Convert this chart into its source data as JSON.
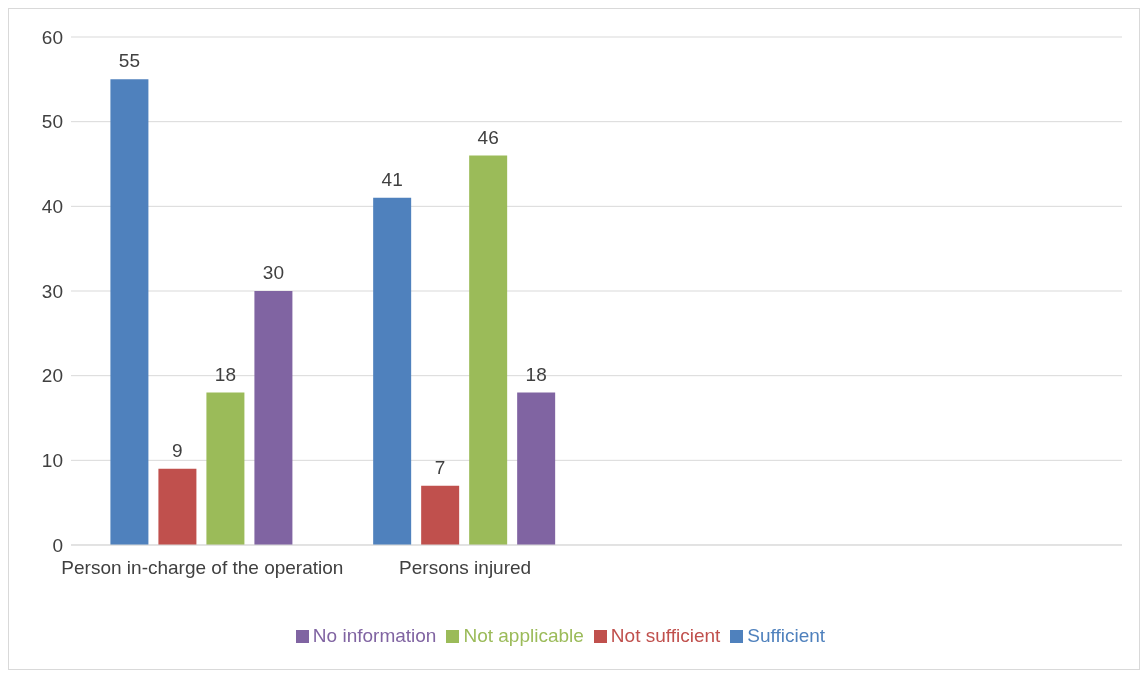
{
  "chart_data": {
    "type": "bar",
    "categories": [
      "Person in-charge of the operation",
      "Persons injured",
      null,
      null
    ],
    "series": [
      {
        "name": "Sufficient",
        "color": "#4f81bd",
        "values": [
          55,
          41,
          null,
          null
        ]
      },
      {
        "name": "Not sufficient",
        "color": "#c0504d",
        "values": [
          9,
          7,
          null,
          null
        ]
      },
      {
        "name": "Not applicable",
        "color": "#9bbb59",
        "values": [
          18,
          46,
          null,
          null
        ]
      },
      {
        "name": "No information",
        "color": "#8064a2",
        "values": [
          30,
          18,
          null,
          null
        ]
      }
    ],
    "ylim": [
      0,
      60
    ],
    "yticks": [
      0,
      10,
      20,
      30,
      40,
      50,
      60
    ],
    "grid": "y",
    "legend": "bottom",
    "data_labels": true
  }
}
